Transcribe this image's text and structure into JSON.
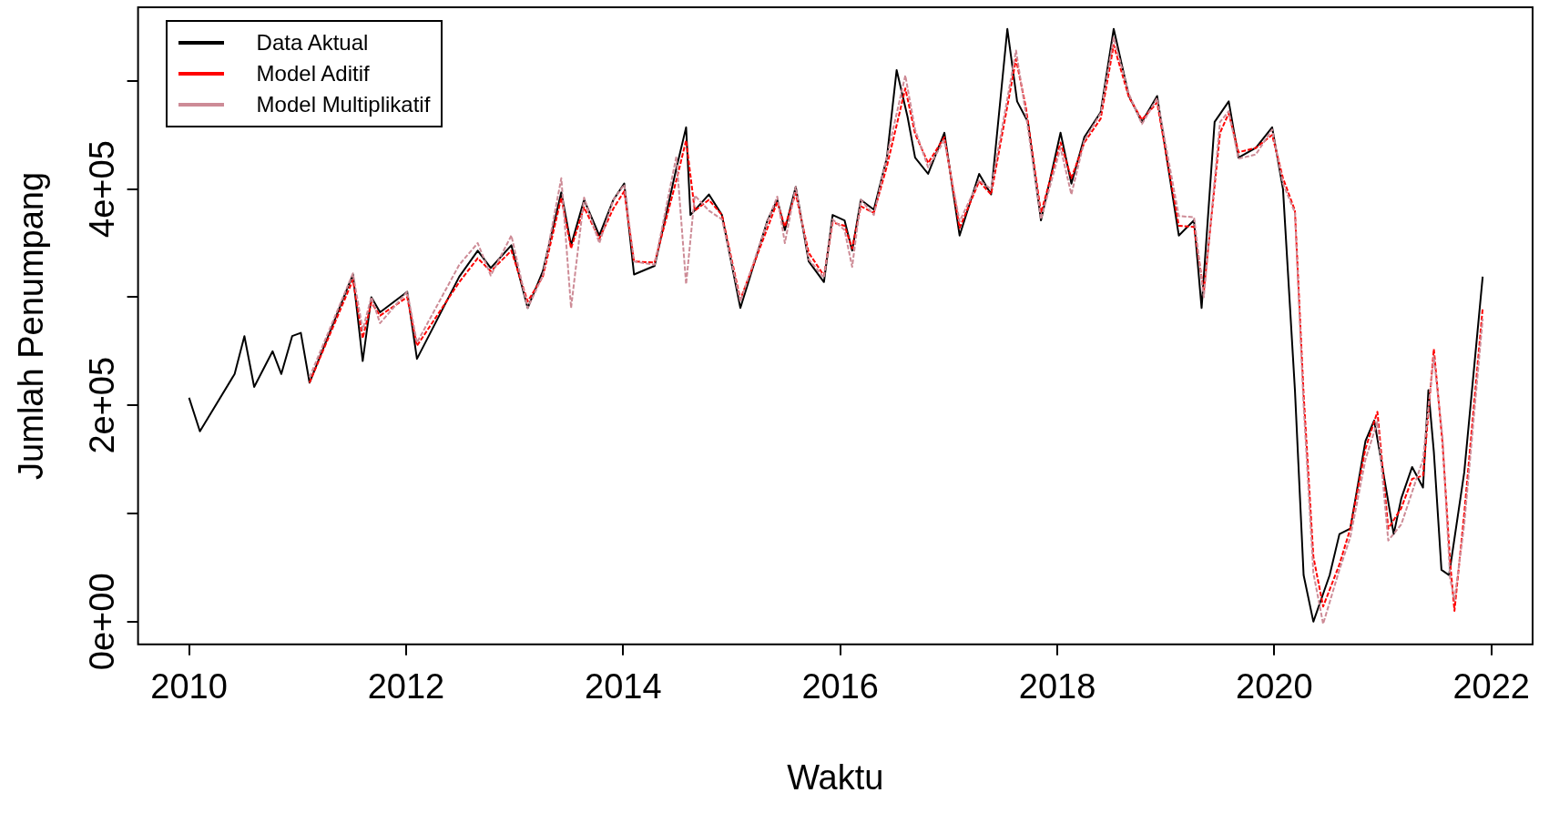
{
  "chart_data": {
    "type": "line",
    "xlabel": "Waktu",
    "ylabel": "Jumlah Penumpang",
    "xlim": [
      2009.53,
      2022.38
    ],
    "xticks": [
      2010,
      2012,
      2014,
      2016,
      2018,
      2020,
      2022
    ],
    "ylim": [
      -21000,
      568000
    ],
    "yticks": [
      {
        "value": 0,
        "label": "0e+00"
      },
      {
        "value": 100000,
        "label": null
      },
      {
        "value": 200000,
        "label": "2e+05"
      },
      {
        "value": 300000,
        "label": null
      },
      {
        "value": 400000,
        "label": "4e+05"
      },
      {
        "value": 500000,
        "label": null
      }
    ],
    "grid": false,
    "legend": "top left",
    "marker": "none",
    "series": [
      {
        "name": "Data Aktual",
        "color": "#000000",
        "line_style": "solid",
        "x": [
          2010.0,
          2010.1,
          2010.42,
          2010.51,
          2010.6,
          2010.77,
          2010.85,
          2010.95,
          2011.03,
          2011.11,
          2011.51,
          2011.6,
          2011.68,
          2011.76,
          2012.01,
          2012.1,
          2012.49,
          2012.66,
          2012.78,
          2012.97,
          2013.12,
          2013.26,
          2013.43,
          2013.52,
          2013.64,
          2013.78,
          2013.91,
          2014.01,
          2014.1,
          2014.29,
          2014.49,
          2014.58,
          2014.62,
          2014.79,
          2014.91,
          2015.08,
          2015.33,
          2015.42,
          2015.49,
          2015.59,
          2015.71,
          2015.85,
          2015.93,
          2016.04,
          2016.11,
          2016.19,
          2016.31,
          2016.43,
          2016.52,
          2016.62,
          2016.69,
          2016.81,
          2016.96,
          2017.1,
          2017.28,
          2017.39,
          2017.54,
          2017.63,
          2017.73,
          2017.85,
          2018.03,
          2018.13,
          2018.25,
          2018.4,
          2018.52,
          2018.66,
          2018.78,
          2018.92,
          2019.12,
          2019.26,
          2019.33,
          2019.45,
          2019.58,
          2019.67,
          2019.83,
          2019.98,
          2020.08,
          2020.19,
          2020.27,
          2020.36,
          2020.51,
          2020.6,
          2020.7,
          2020.84,
          2020.92,
          2020.98,
          2021.1,
          2021.17,
          2021.27,
          2021.37,
          2021.42,
          2021.47,
          2021.54,
          2021.61,
          2021.75,
          2021.92
        ],
        "values": [
          207000,
          176000,
          229000,
          264000,
          217000,
          250000,
          229000,
          264000,
          267000,
          221000,
          321000,
          241000,
          300000,
          286000,
          305000,
          243000,
          319000,
          343000,
          327000,
          348000,
          290000,
          324000,
          397000,
          348000,
          390000,
          357000,
          390000,
          405000,
          321000,
          329000,
          419000,
          457000,
          376000,
          395000,
          376000,
          290000,
          371000,
          390000,
          362000,
          402000,
          333000,
          314000,
          376000,
          371000,
          343000,
          390000,
          381000,
          429000,
          510000,
          467000,
          429000,
          414000,
          452000,
          357000,
          414000,
          395000,
          548000,
          481000,
          462000,
          371000,
          452000,
          405000,
          448000,
          471000,
          548000,
          486000,
          462000,
          486000,
          357000,
          371000,
          290000,
          462000,
          481000,
          429000,
          438000,
          457000,
          400000,
          214000,
          43000,
          0,
          43000,
          81000,
          86000,
          167000,
          186000,
          152000,
          81000,
          114000,
          143000,
          124000,
          214000,
          157000,
          48000,
          43000,
          138000,
          319000
        ]
      },
      {
        "name": "Model Aditif",
        "color": "#ff0000",
        "line_style": "dashed",
        "x": [
          2011.11,
          2011.51,
          2011.6,
          2011.68,
          2011.76,
          2012.01,
          2012.1,
          2012.49,
          2012.66,
          2012.78,
          2012.97,
          2013.12,
          2013.26,
          2013.43,
          2013.52,
          2013.64,
          2013.78,
          2013.91,
          2014.01,
          2014.1,
          2014.29,
          2014.49,
          2014.58,
          2014.66,
          2014.79,
          2014.91,
          2015.08,
          2015.33,
          2015.42,
          2015.49,
          2015.59,
          2015.71,
          2015.85,
          2015.93,
          2016.04,
          2016.11,
          2016.19,
          2016.31,
          2016.43,
          2016.6,
          2016.69,
          2016.81,
          2016.96,
          2017.1,
          2017.28,
          2017.39,
          2017.62,
          2017.71,
          2017.85,
          2018.03,
          2018.13,
          2018.25,
          2018.4,
          2018.52,
          2018.66,
          2018.78,
          2018.92,
          2019.12,
          2019.26,
          2019.35,
          2019.5,
          2019.58,
          2019.67,
          2019.83,
          2019.98,
          2020.08,
          2020.19,
          2020.27,
          2020.36,
          2020.45,
          2020.6,
          2020.7,
          2020.84,
          2020.95,
          2021.05,
          2021.17,
          2021.27,
          2021.37,
          2021.47,
          2021.55,
          2021.62,
          2021.66,
          2021.75,
          2021.92
        ],
        "values": [
          221000,
          316000,
          262000,
          295000,
          283000,
          300000,
          255000,
          314000,
          336000,
          324000,
          343000,
          296000,
          319000,
          392000,
          345000,
          383000,
          354000,
          382000,
          398000,
          333000,
          332000,
          408000,
          445000,
          380000,
          390000,
          376000,
          298000,
          364000,
          388000,
          365000,
          396000,
          341000,
          320000,
          369000,
          366000,
          345000,
          384000,
          378000,
          421000,
          493000,
          451000,
          424000,
          448000,
          364000,
          407000,
          395000,
          520000,
          476000,
          378000,
          443000,
          410000,
          443000,
          465000,
          533000,
          485000,
          464000,
          480000,
          366000,
          365000,
          305000,
          452000,
          470000,
          434000,
          438000,
          450000,
          410000,
          380000,
          210000,
          60000,
          14000,
          53000,
          86000,
          160000,
          194000,
          86000,
          105000,
          132000,
          135000,
          252000,
          165000,
          55000,
          10000,
          100000,
          290000
        ]
      },
      {
        "name": "Model Multiplikatif",
        "color": "#cd8b96",
        "line_style": "dashed",
        "x": [
          2011.11,
          2011.51,
          2011.6,
          2011.68,
          2011.76,
          2012.01,
          2012.1,
          2012.49,
          2012.66,
          2012.78,
          2012.97,
          2013.12,
          2013.26,
          2013.43,
          2013.52,
          2013.64,
          2013.78,
          2013.91,
          2014.01,
          2014.1,
          2014.29,
          2014.49,
          2014.58,
          2014.66,
          2014.79,
          2014.91,
          2015.08,
          2015.33,
          2015.42,
          2015.49,
          2015.59,
          2015.71,
          2015.85,
          2015.93,
          2016.04,
          2016.11,
          2016.19,
          2016.31,
          2016.43,
          2016.6,
          2016.69,
          2016.81,
          2016.96,
          2017.1,
          2017.28,
          2017.39,
          2017.62,
          2017.71,
          2017.85,
          2018.03,
          2018.13,
          2018.25,
          2018.4,
          2018.52,
          2018.66,
          2018.78,
          2018.92,
          2019.12,
          2019.26,
          2019.35,
          2019.5,
          2019.58,
          2019.67,
          2019.83,
          2019.98,
          2020.08,
          2020.19,
          2020.27,
          2020.36,
          2020.45,
          2020.6,
          2020.7,
          2020.84,
          2020.95,
          2021.05,
          2021.17,
          2021.27,
          2021.37,
          2021.47,
          2021.55,
          2021.62,
          2021.66,
          2021.75,
          2021.92
        ],
        "values": [
          226000,
          322000,
          270000,
          300000,
          276000,
          305000,
          258000,
          330000,
          350000,
          320000,
          357000,
          290000,
          320000,
          410000,
          290000,
          392000,
          350000,
          390000,
          404000,
          333000,
          330000,
          430000,
          312000,
          394000,
          380000,
          372000,
          296000,
          370000,
          393000,
          350000,
          402000,
          335000,
          318000,
          372000,
          362000,
          328000,
          390000,
          376000,
          430000,
          505000,
          455000,
          420000,
          445000,
          370000,
          408000,
          400000,
          528000,
          470000,
          372000,
          438000,
          395000,
          445000,
          470000,
          540000,
          488000,
          460000,
          484000,
          375000,
          374000,
          300000,
          462000,
          472000,
          428000,
          432000,
          455000,
          405000,
          378000,
          200000,
          45000,
          -2000,
          48000,
          78000,
          150000,
          185000,
          75000,
          90000,
          120000,
          150000,
          245000,
          170000,
          40000,
          20000,
          90000,
          280000
        ]
      }
    ]
  }
}
